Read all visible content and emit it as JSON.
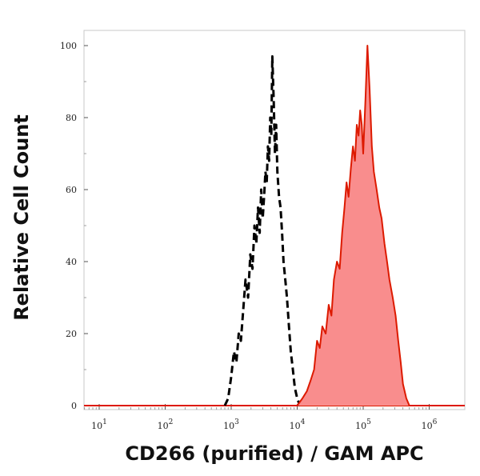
{
  "chart_data": {
    "type": "area",
    "xlabel": "CD266 (purified) / GAM APC",
    "ylabel": "Relative Cell Count",
    "x_scale": "log",
    "xlim": [
      1,
      1000000
    ],
    "ylim": [
      0,
      100
    ],
    "x_ticks": [
      {
        "base": "10",
        "exp": "1",
        "value": 10
      },
      {
        "base": "10",
        "exp": "2",
        "value": 100
      },
      {
        "base": "10",
        "exp": "3",
        "value": 1000
      },
      {
        "base": "10",
        "exp": "4",
        "value": 10000
      },
      {
        "base": "10",
        "exp": "5",
        "value": 100000
      },
      {
        "base": "10",
        "exp": "6",
        "value": 1000000
      }
    ],
    "y_ticks": [
      "0",
      "20",
      "40",
      "60",
      "80",
      "100"
    ],
    "grid": false,
    "series": [
      {
        "style": "dashed",
        "color": "#000000",
        "x": [
          800,
          900,
          1000,
          1100,
          1200,
          1300,
          1400,
          1500,
          1650,
          1800,
          1950,
          2100,
          2250,
          2400,
          2550,
          2700,
          2850,
          3000,
          3150,
          3300,
          3450,
          3600,
          3750,
          3900,
          4050,
          4200,
          4400,
          4600,
          4800,
          5000,
          5300,
          5600,
          5900,
          6200,
          6600,
          7000,
          7500,
          8000,
          8600,
          9200,
          10000,
          11000
        ],
        "values": [
          0,
          2,
          8,
          15,
          12,
          20,
          18,
          25,
          35,
          30,
          42,
          38,
          50,
          45,
          55,
          48,
          60,
          52,
          58,
          65,
          62,
          72,
          68,
          80,
          75,
          97,
          85,
          70,
          78,
          65,
          58,
          55,
          48,
          40,
          35,
          30,
          22,
          15,
          10,
          5,
          2,
          0
        ]
      },
      {
        "style": "filled",
        "color": "#dd1a00",
        "fill": "#f98d8d",
        "x": [
          10000,
          12000,
          14000,
          16000,
          18000,
          20000,
          22000,
          24000,
          27000,
          30000,
          33000,
          36000,
          40000,
          44000,
          48000,
          52000,
          56000,
          60000,
          65000,
          70000,
          75000,
          80000,
          85000,
          90000,
          95000,
          100000,
          108000,
          116000,
          125000,
          135000,
          145000,
          160000,
          175000,
          190000,
          210000,
          230000,
          250000,
          280000,
          310000,
          340000,
          370000,
          400000,
          450000,
          500000
        ],
        "values": [
          0,
          2,
          4,
          7,
          10,
          18,
          16,
          22,
          20,
          28,
          25,
          35,
          40,
          38,
          48,
          55,
          62,
          58,
          66,
          72,
          68,
          78,
          75,
          82,
          78,
          70,
          85,
          100,
          88,
          72,
          65,
          60,
          55,
          52,
          45,
          40,
          35,
          30,
          25,
          18,
          12,
          6,
          2,
          0
        ]
      }
    ]
  }
}
